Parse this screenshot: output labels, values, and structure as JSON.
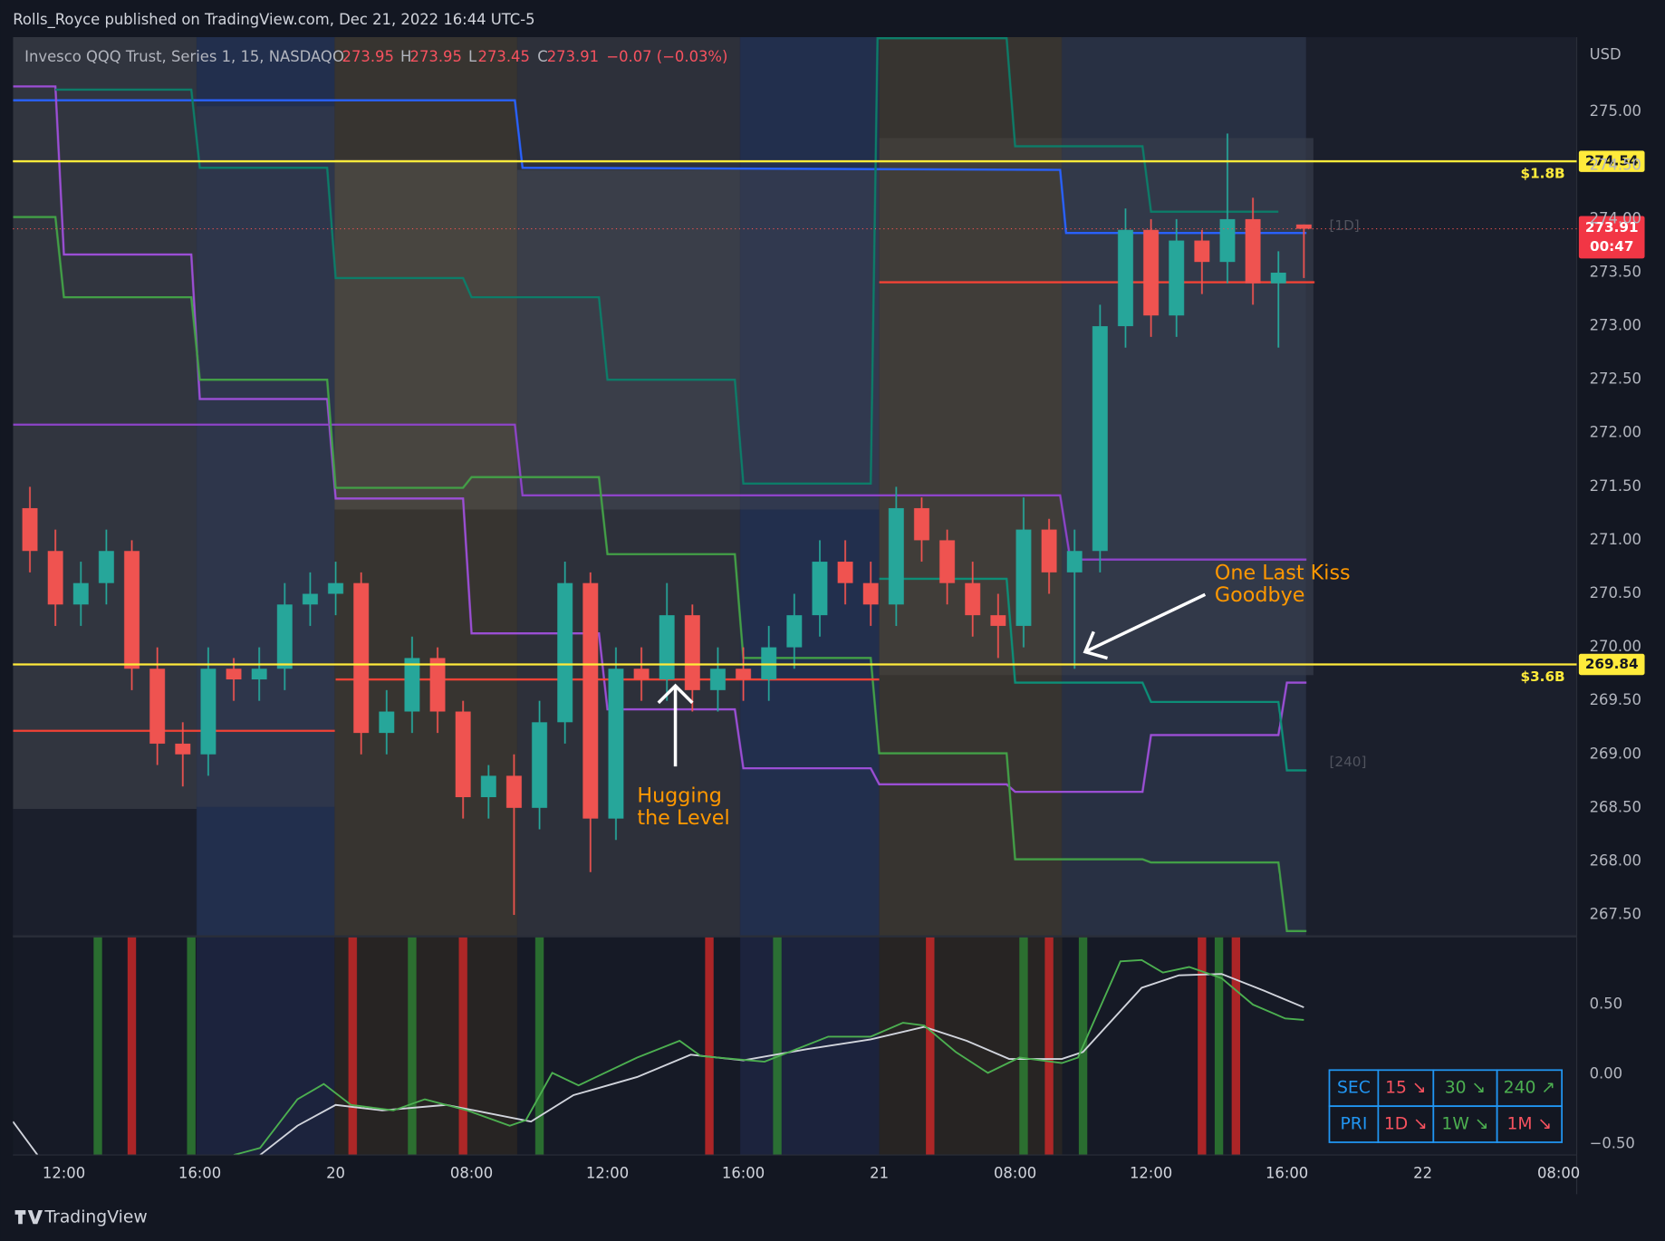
{
  "header": {
    "published": "Rolls_Royce published on TradingView.com, Dec 21, 2022 16:44 UTC-5",
    "footer": "TradingView"
  },
  "chart_data": [
    {
      "type": "candlestick",
      "title": "Invesco QQQ Trust, Series 1, 15, NASDAQ",
      "ohlc_labels": [
        "O",
        "H",
        "L",
        "C"
      ],
      "ohlc_values": [
        273.95,
        273.95,
        273.45,
        273.91
      ],
      "change": "−0.07 (−0.03%)",
      "countdown": "00:47",
      "currency": "USD",
      "xlim": [
        0,
        184.125
      ],
      "ylim": [
        267.3,
        275.7
      ],
      "grid": false,
      "yticks": [
        {
          "value": 267.5,
          "label": "267.50"
        },
        {
          "value": 268,
          "label": "268.00"
        },
        {
          "value": 268.5,
          "label": "268.50"
        },
        {
          "value": 269,
          "label": "269.00"
        },
        {
          "value": 269.5,
          "label": "269.50"
        },
        {
          "value": 270,
          "label": "270.00"
        },
        {
          "value": 270.5,
          "label": "270.50"
        },
        {
          "value": 271,
          "label": "271.00"
        },
        {
          "value": 271.5,
          "label": "271.50"
        },
        {
          "value": 272,
          "label": "272.00"
        },
        {
          "value": 272.5,
          "label": "272.50"
        },
        {
          "value": 273,
          "label": "273.00"
        },
        {
          "value": 273.5,
          "label": "273.50"
        },
        {
          "value": 274,
          "label": "274.00"
        },
        {
          "value": 274.5,
          "label": "274.50"
        },
        {
          "value": 275,
          "label": "275.00"
        }
      ],
      "xticks": [
        {
          "value": 6,
          "label": "12:00"
        },
        {
          "value": 22,
          "label": "16:00"
        },
        {
          "value": 38,
          "label": "20"
        },
        {
          "value": 54,
          "label": "08:00"
        },
        {
          "value": 70,
          "label": "12:00"
        },
        {
          "value": 86,
          "label": "16:00"
        },
        {
          "value": 102,
          "label": "21"
        },
        {
          "value": 118,
          "label": "08:00"
        },
        {
          "value": 134,
          "label": "12:00"
        },
        {
          "value": 150,
          "label": "16:00"
        },
        {
          "value": 166,
          "label": "22"
        },
        {
          "value": 182,
          "label": "08:00"
        }
      ],
      "up_color": "#26a69a",
      "down_color": "#ef5350",
      "x": [
        2,
        5,
        8,
        11,
        14,
        17,
        20,
        23,
        26,
        29,
        32,
        35,
        38,
        41,
        44,
        47,
        50,
        53,
        56,
        59,
        62,
        65,
        68,
        71,
        74,
        77,
        80,
        83,
        86,
        89,
        92,
        95,
        98,
        101,
        104,
        107,
        110,
        113,
        116,
        119,
        122,
        125,
        128,
        131,
        134,
        137,
        140,
        143,
        146,
        149,
        152
      ],
      "open": [
        271.3,
        270.9,
        270.4,
        270.6,
        270.9,
        269.8,
        269.1,
        269.0,
        269.8,
        269.7,
        269.8,
        270.4,
        270.5,
        270.6,
        269.2,
        269.4,
        269.9,
        269.4,
        268.6,
        268.8,
        268.5,
        269.3,
        270.6,
        268.4,
        269.8,
        269.7,
        270.3,
        269.6,
        269.8,
        269.7,
        270.0,
        270.3,
        270.8,
        270.6,
        270.4,
        271.3,
        271.0,
        270.6,
        270.3,
        270.2,
        271.1,
        270.7,
        270.9,
        273.0,
        273.9,
        273.1,
        273.8,
        273.6,
        274.0,
        273.4,
        273.95
      ],
      "high": [
        271.5,
        271.1,
        270.8,
        271.1,
        271.0,
        270.0,
        269.3,
        270.0,
        269.9,
        270.0,
        270.6,
        270.7,
        270.8,
        270.7,
        269.6,
        270.1,
        270.0,
        269.5,
        268.9,
        269.0,
        269.5,
        270.8,
        270.7,
        270.0,
        270.0,
        270.6,
        270.4,
        270.0,
        270.0,
        270.2,
        270.5,
        271.0,
        271.0,
        270.8,
        271.5,
        271.4,
        271.1,
        270.8,
        270.5,
        271.4,
        271.2,
        271.1,
        273.2,
        274.1,
        274.0,
        274.0,
        273.9,
        274.8,
        274.2,
        273.7,
        273.95
      ],
      "low": [
        270.7,
        270.2,
        270.2,
        270.4,
        269.6,
        268.9,
        268.7,
        268.8,
        269.5,
        269.5,
        269.6,
        270.2,
        270.3,
        269.0,
        269.0,
        269.2,
        269.2,
        268.4,
        268.4,
        267.5,
        268.3,
        269.1,
        267.9,
        268.2,
        269.5,
        269.5,
        269.4,
        269.4,
        269.5,
        269.5,
        269.8,
        270.1,
        270.4,
        270.2,
        270.2,
        270.8,
        270.4,
        270.1,
        269.9,
        270.0,
        270.5,
        269.8,
        270.7,
        272.8,
        272.9,
        272.9,
        273.3,
        273.4,
        273.2,
        272.8,
        273.45
      ],
      "close": [
        270.9,
        270.4,
        270.6,
        270.9,
        269.8,
        269.1,
        269.0,
        269.8,
        269.7,
        269.8,
        270.4,
        270.5,
        270.6,
        269.2,
        269.4,
        269.9,
        269.4,
        268.6,
        268.8,
        268.5,
        269.3,
        270.6,
        268.4,
        269.8,
        269.7,
        270.3,
        269.6,
        269.8,
        269.7,
        270.0,
        270.3,
        270.8,
        270.6,
        270.4,
        271.3,
        271.0,
        270.6,
        270.3,
        270.2,
        271.1,
        270.7,
        270.9,
        273.0,
        273.9,
        273.1,
        273.8,
        273.6,
        274.0,
        273.4,
        273.5,
        273.91
      ],
      "series": [
        {
          "color": "#2962ff",
          "x": [
            0,
            59.1,
            60,
            123.3,
            124,
            152.3
          ],
          "values": [
            275.11,
            275.11,
            274.48,
            274.46,
            273.87,
            273.87
          ]
        },
        {
          "color": "#9c4fd6",
          "x": [
            0,
            5,
            6,
            21,
            22,
            37,
            38,
            53,
            54,
            69,
            70,
            85,
            86,
            101,
            102,
            117,
            118,
            133,
            134,
            149,
            150,
            152.3
          ],
          "values": [
            275.24,
            275.24,
            273.67,
            273.67,
            272.32,
            272.32,
            271.39,
            271.39,
            270.13,
            270.13,
            269.42,
            269.42,
            268.87,
            268.87,
            268.72,
            268.72,
            268.65,
            268.65,
            269.18,
            269.18,
            269.67,
            269.67
          ]
        },
        {
          "color": "#8e44c9",
          "x": [
            0,
            59.1,
            60,
            123.3,
            124.5,
            152.3
          ],
          "values": [
            272.08,
            272.08,
            271.42,
            271.42,
            270.82,
            270.82
          ]
        },
        {
          "color": "#43a047",
          "x": [
            0,
            5,
            6,
            21,
            22,
            37,
            38,
            53,
            54,
            69,
            70,
            85,
            86,
            101,
            102,
            117,
            118,
            133,
            134,
            149,
            150,
            152.3
          ],
          "values": [
            274.02,
            274.02,
            273.27,
            273.27,
            272.5,
            272.5,
            271.49,
            271.49,
            271.59,
            271.59,
            270.87,
            270.87,
            269.9,
            269.9,
            269.01,
            269.01,
            268.02,
            268.02,
            267.99,
            267.99,
            267.35,
            267.35
          ]
        },
        {
          "color": "#0d7d69",
          "x": [
            5,
            21,
            22,
            37,
            38,
            53,
            54,
            69,
            70,
            85,
            86,
            101,
            101.8,
            117,
            118,
            133,
            134,
            149
          ],
          "values": [
            275.21,
            275.21,
            274.48,
            274.48,
            273.45,
            273.45,
            273.27,
            273.27,
            272.5,
            272.5,
            271.53,
            271.53,
            275.69,
            275.69,
            274.68,
            274.68,
            274.07,
            274.07
          ]
        },
        {
          "color": "#0d8f78",
          "x": [
            102,
            117,
            118,
            133,
            134,
            149,
            150,
            152.3
          ],
          "values": [
            270.64,
            270.64,
            269.67,
            269.67,
            269.49,
            269.49,
            268.85,
            268.85
          ]
        },
        {
          "color": "#f44336",
          "x": [
            0,
            37.9
          ],
          "values": [
            269.22,
            269.22
          ]
        },
        {
          "color": "#f44336",
          "x": [
            38,
            102
          ],
          "values": [
            269.7,
            269.7
          ]
        },
        {
          "color": "#f44336",
          "x": [
            102,
            153.25
          ],
          "values": [
            273.41,
            273.41
          ]
        }
      ],
      "levels": [
        {
          "value": 274.54,
          "name": "$1.8B",
          "color": "#ffeb3b"
        },
        {
          "value": 269.84,
          "name": "$3.6B",
          "color": "#ffeb3b"
        }
      ],
      "indicator_labels": [
        "[1D]",
        "[240]"
      ],
      "annotations": [
        [
          "Hugging",
          "the Level"
        ],
        [
          "One Last Kiss",
          "Goodbye"
        ]
      ]
    },
    {
      "type": "line",
      "xlim": [
        0,
        184.125
      ],
      "ylim": [
        -0.58,
        0.99
      ],
      "yticks": [
        {
          "value": -0.5,
          "label": "−0.50"
        },
        {
          "value": 0,
          "label": "0.00"
        },
        {
          "value": 0.5,
          "label": "0.50"
        }
      ],
      "signals": [
        {
          "color": "#2e7d32",
          "x": [
            10,
            21,
            47,
            62,
            90,
            119,
            126,
            142
          ]
        },
        {
          "color": "#c62828",
          "x": [
            14,
            40,
            53,
            82,
            108,
            122,
            140,
            144
          ]
        }
      ],
      "series": [
        {
          "color": "#d1d4dc",
          "x": [
            0,
            2.9,
            16,
            29.1,
            33.5,
            38,
            43.5,
            51,
            56,
            61,
            66,
            73.5,
            79.8,
            86,
            93.5,
            101,
            107.3,
            112.3,
            117.3,
            123.5,
            126,
            132.9,
            137.3,
            142.3,
            147.3,
            152
          ],
          "values": [
            -0.34,
            -0.58,
            null,
            -0.58,
            -0.37,
            -0.22,
            -0.26,
            -0.22,
            -0.28,
            -0.34,
            -0.15,
            -0.02,
            0.14,
            0.1,
            0.18,
            0.25,
            0.34,
            0.24,
            0.11,
            0.11,
            0.16,
            0.62,
            0.71,
            0.72,
            0.6,
            0.48
          ]
        },
        {
          "color": "#4caf50",
          "x": [
            26,
            29.1,
            33.5,
            36.6,
            39.8,
            44.8,
            48.5,
            53.5,
            58.5,
            60.4,
            63.5,
            66.6,
            73.5,
            78.5,
            81,
            88.5,
            96,
            101,
            104.8,
            107.3,
            111,
            114.8,
            118.5,
            123.5,
            125.4,
            130.4,
            132.9,
            135.4,
            138.5,
            142.3,
            146,
            149.8,
            152
          ],
          "values": [
            -0.58,
            -0.53,
            -0.18,
            -0.07,
            -0.22,
            -0.26,
            -0.18,
            -0.26,
            -0.37,
            -0.33,
            0.01,
            -0.08,
            0.12,
            0.24,
            0.13,
            0.09,
            0.27,
            0.27,
            0.37,
            0.35,
            0.16,
            0.01,
            0.12,
            0.08,
            0.12,
            0.81,
            0.82,
            0.73,
            0.77,
            0.69,
            0.5,
            0.4,
            0.39
          ]
        }
      ]
    }
  ],
  "status_table": {
    "rows": [
      [
        "SEC",
        "15 ↘",
        "30 ↘",
        "240 ↗"
      ],
      [
        "PRI",
        "1D ↘",
        "1W ↘",
        "1M ↘"
      ]
    ]
  }
}
